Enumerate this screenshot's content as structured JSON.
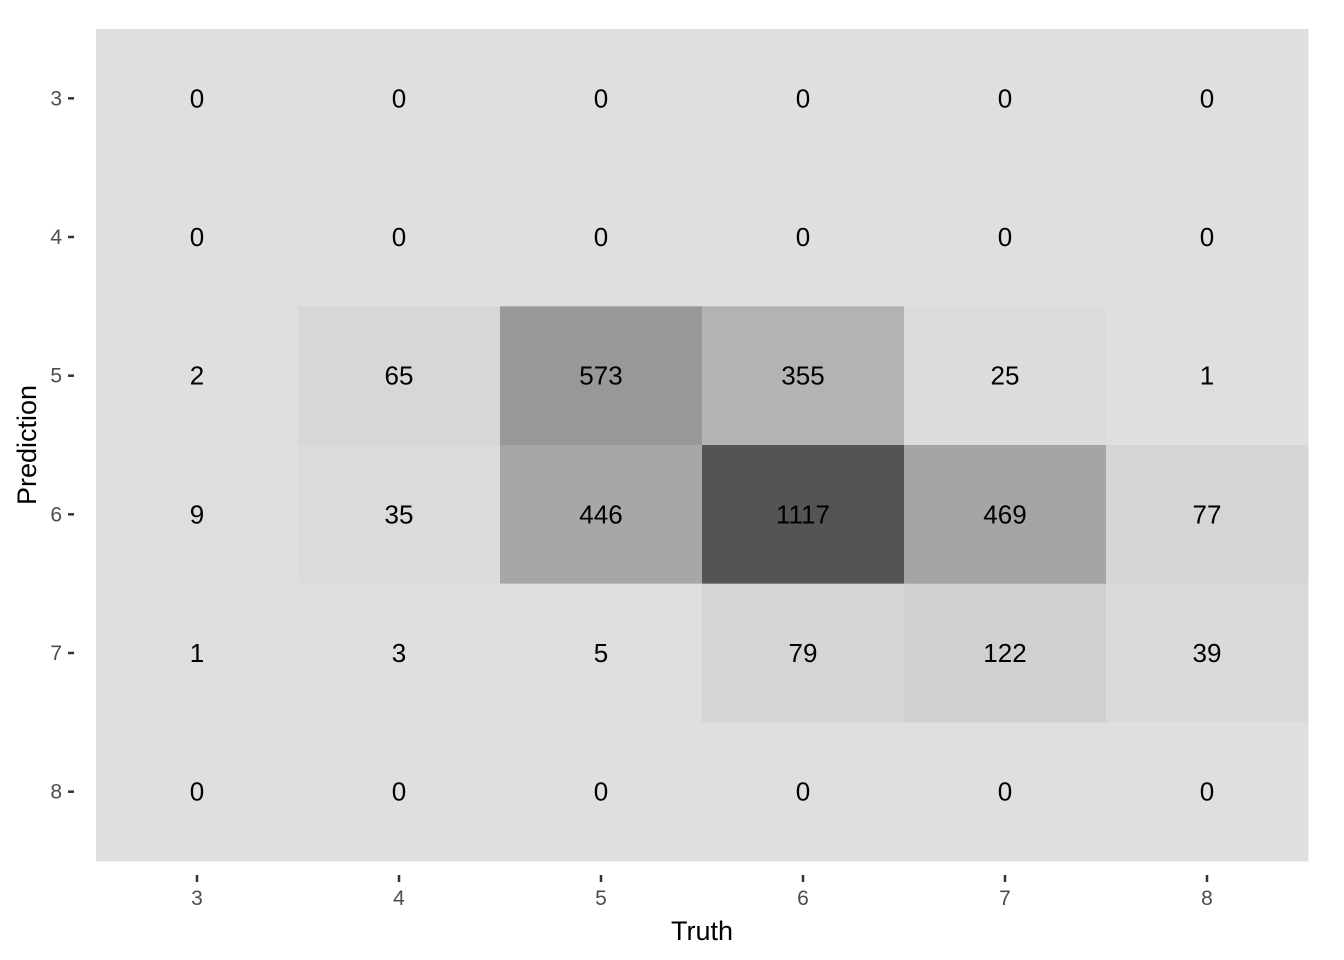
{
  "chart_data": {
    "type": "heatmap",
    "title": "",
    "xlabel": "Truth",
    "ylabel": "Prediction",
    "x_categories": [
      "3",
      "4",
      "5",
      "6",
      "7",
      "8"
    ],
    "y_categories": [
      "3",
      "4",
      "5",
      "6",
      "7",
      "8"
    ],
    "values": [
      [
        0,
        0,
        0,
        0,
        0,
        0
      ],
      [
        0,
        0,
        0,
        0,
        0,
        0
      ],
      [
        2,
        65,
        573,
        355,
        25,
        1
      ],
      [
        9,
        35,
        446,
        1117,
        469,
        77
      ],
      [
        1,
        3,
        5,
        79,
        122,
        39
      ],
      [
        0,
        0,
        0,
        0,
        0,
        0
      ]
    ],
    "color_low": "#dfdfdf",
    "color_high": "#545454",
    "panel_background": "#dfdfdf",
    "grid": false,
    "legend": "none"
  }
}
